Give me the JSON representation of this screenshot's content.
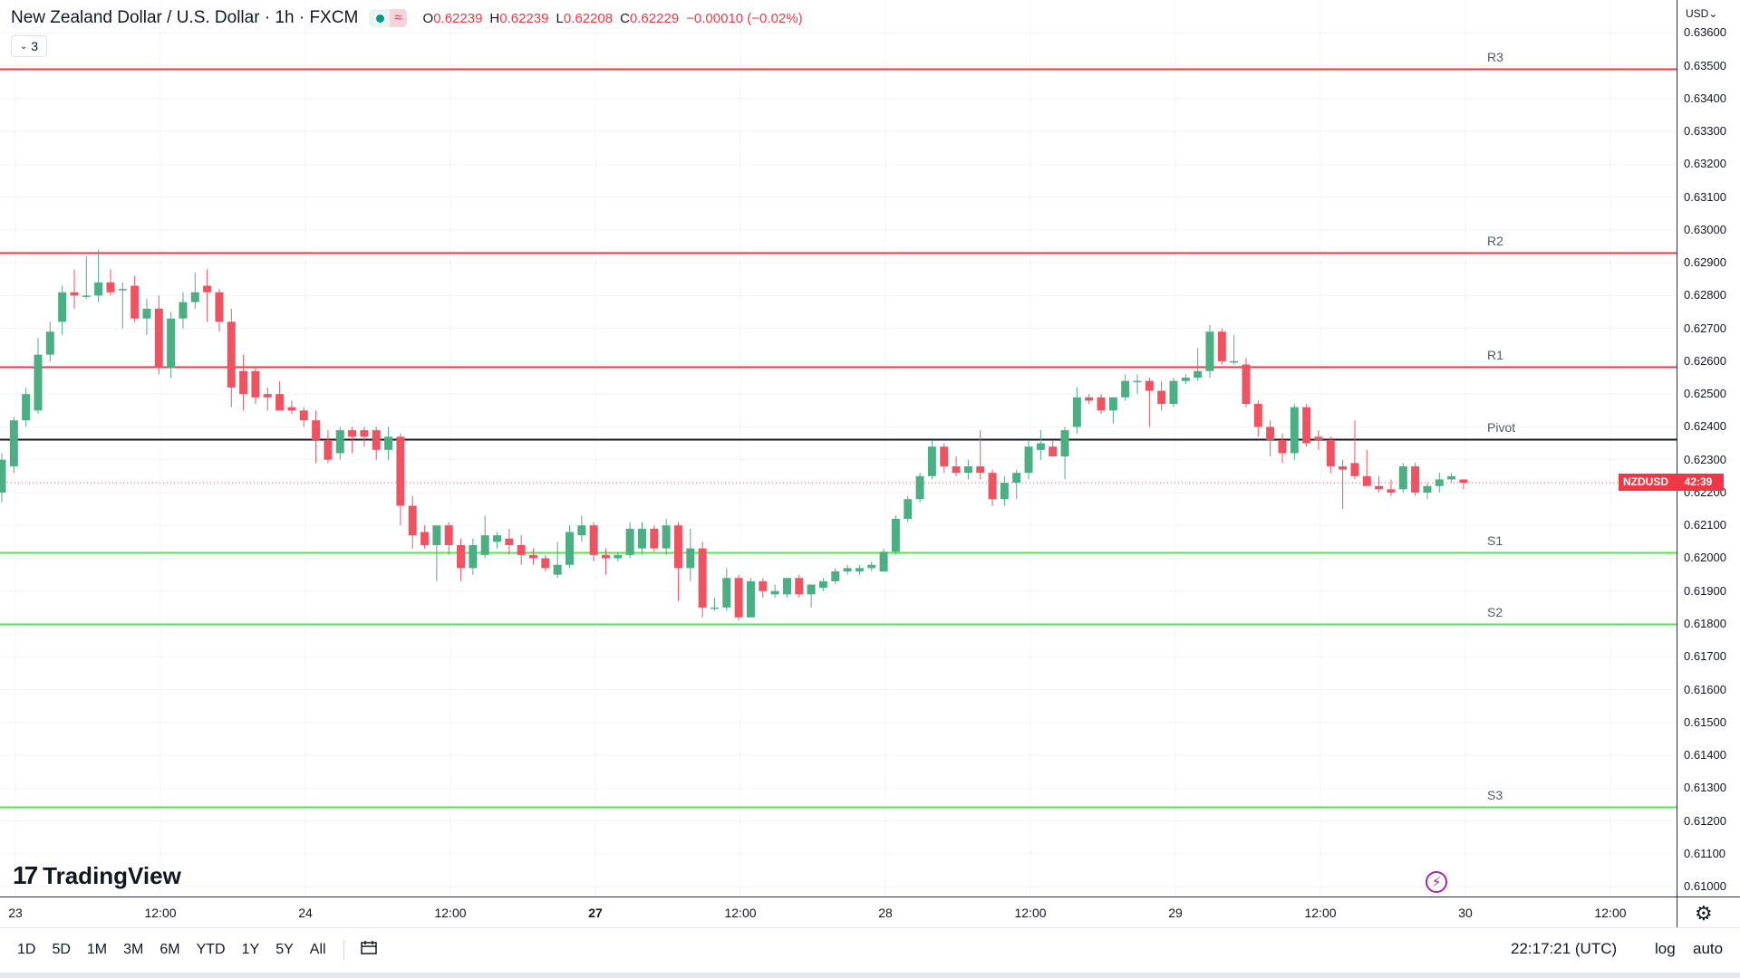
{
  "header": {
    "title": "New Zealand Dollar / U.S. Dollar · 1h · FXCM",
    "ohlc": [
      {
        "label": "O",
        "value": "0.62239"
      },
      {
        "label": "H",
        "value": "0.62239"
      },
      {
        "label": "L",
        "value": "0.62208"
      },
      {
        "label": "C",
        "value": "0.62229"
      }
    ],
    "change": "−0.00010 (−0.02%)",
    "indicator_count": "3",
    "market_status_icon": "dot-icon",
    "wave_icon": "≈"
  },
  "currency": "USD",
  "colors": {
    "up": "#4caf84",
    "down": "#ef5361",
    "resistance": "#f23645",
    "support": "#4ce84c",
    "pivot": "#131722"
  },
  "price_ticks": [
    "0.63600",
    "0.63500",
    "0.63400",
    "0.63300",
    "0.63200",
    "0.63100",
    "0.63000",
    "0.62900",
    "0.62800",
    "0.62700",
    "0.62600",
    "0.62500",
    "0.62400",
    "0.62300",
    "0.62200",
    "0.62100",
    "0.62000",
    "0.61900",
    "0.61800",
    "0.61700",
    "0.61600",
    "0.61500",
    "0.61400",
    "0.61300",
    "0.61200",
    "0.61100",
    "0.61000"
  ],
  "time_ticks": [
    {
      "label": "23",
      "bold": false
    },
    {
      "label": "12:00",
      "bold": false
    },
    {
      "label": "24",
      "bold": false
    },
    {
      "label": "12:00",
      "bold": false
    },
    {
      "label": "27",
      "bold": true
    },
    {
      "label": "12:00",
      "bold": false
    },
    {
      "label": "28",
      "bold": false
    },
    {
      "label": "12:00",
      "bold": false
    },
    {
      "label": "29",
      "bold": false
    },
    {
      "label": "12:00",
      "bold": false
    },
    {
      "label": "30",
      "bold": false
    },
    {
      "label": "12:00",
      "bold": false
    }
  ],
  "last_price_tag": {
    "symbol": "NZDUSD",
    "countdown": "42:39"
  },
  "chart_data": {
    "type": "candlestick",
    "symbol": "NZDUSD",
    "interval": "1h",
    "ylim": [
      0.6097,
      0.637
    ],
    "levels": [
      {
        "name": "R3",
        "price": 0.6349,
        "kind": "resistance"
      },
      {
        "name": "R2",
        "price": 0.62932,
        "kind": "resistance"
      },
      {
        "name": "R1",
        "price": 0.62583,
        "kind": "resistance"
      },
      {
        "name": "Pivot",
        "price": 0.62363,
        "kind": "pivot"
      },
      {
        "name": "S1",
        "price": 0.62018,
        "kind": "support"
      },
      {
        "name": "S2",
        "price": 0.618,
        "kind": "support"
      },
      {
        "name": "S3",
        "price": 0.61242,
        "kind": "support"
      }
    ],
    "candles": [
      {
        "o": 0.622,
        "h": 0.6232,
        "l": 0.6217,
        "c": 0.623
      },
      {
        "o": 0.6228,
        "h": 0.6243,
        "l": 0.6226,
        "c": 0.6242
      },
      {
        "o": 0.6242,
        "h": 0.6252,
        "l": 0.624,
        "c": 0.625
      },
      {
        "o": 0.6245,
        "h": 0.6267,
        "l": 0.6244,
        "c": 0.6262
      },
      {
        "o": 0.6262,
        "h": 0.6272,
        "l": 0.626,
        "c": 0.6269
      },
      {
        "o": 0.6272,
        "h": 0.6283,
        "l": 0.6268,
        "c": 0.6281
      },
      {
        "o": 0.6281,
        "h": 0.6288,
        "l": 0.6276,
        "c": 0.628
      },
      {
        "o": 0.628,
        "h": 0.6292,
        "l": 0.6279,
        "c": 0.628
      },
      {
        "o": 0.628,
        "h": 0.6294,
        "l": 0.6278,
        "c": 0.6284
      },
      {
        "o": 0.6284,
        "h": 0.6288,
        "l": 0.628,
        "c": 0.6281
      },
      {
        "o": 0.6282,
        "h": 0.6284,
        "l": 0.627,
        "c": 0.6282
      },
      {
        "o": 0.6283,
        "h": 0.6286,
        "l": 0.6272,
        "c": 0.6273
      },
      {
        "o": 0.6273,
        "h": 0.6279,
        "l": 0.6268,
        "c": 0.6276
      },
      {
        "o": 0.6276,
        "h": 0.628,
        "l": 0.6256,
        "c": 0.6258
      },
      {
        "o": 0.6258,
        "h": 0.6275,
        "l": 0.6255,
        "c": 0.6273
      },
      {
        "o": 0.6273,
        "h": 0.6281,
        "l": 0.627,
        "c": 0.6278
      },
      {
        "o": 0.6278,
        "h": 0.6287,
        "l": 0.6276,
        "c": 0.6281
      },
      {
        "o": 0.6283,
        "h": 0.6288,
        "l": 0.6272,
        "c": 0.6281
      },
      {
        "o": 0.6281,
        "h": 0.6282,
        "l": 0.6269,
        "c": 0.6272
      },
      {
        "o": 0.6272,
        "h": 0.6276,
        "l": 0.6246,
        "c": 0.6252
      },
      {
        "o": 0.6257,
        "h": 0.6262,
        "l": 0.6245,
        "c": 0.625
      },
      {
        "o": 0.6257,
        "h": 0.6258,
        "l": 0.6247,
        "c": 0.6249
      },
      {
        "o": 0.625,
        "h": 0.6252,
        "l": 0.6245,
        "c": 0.6249
      },
      {
        "o": 0.625,
        "h": 0.6254,
        "l": 0.6245,
        "c": 0.6245
      },
      {
        "o": 0.6246,
        "h": 0.6248,
        "l": 0.6244,
        "c": 0.6245
      },
      {
        "o": 0.6245,
        "h": 0.6246,
        "l": 0.624,
        "c": 0.6242
      },
      {
        "o": 0.6242,
        "h": 0.6245,
        "l": 0.6229,
        "c": 0.6236
      },
      {
        "o": 0.6236,
        "h": 0.6239,
        "l": 0.6229,
        "c": 0.623
      },
      {
        "o": 0.6232,
        "h": 0.624,
        "l": 0.623,
        "c": 0.6239
      },
      {
        "o": 0.6239,
        "h": 0.624,
        "l": 0.6232,
        "c": 0.6237
      },
      {
        "o": 0.6239,
        "h": 0.624,
        "l": 0.6234,
        "c": 0.6237
      },
      {
        "o": 0.6239,
        "h": 0.624,
        "l": 0.623,
        "c": 0.6233
      },
      {
        "o": 0.6233,
        "h": 0.624,
        "l": 0.623,
        "c": 0.6237
      },
      {
        "o": 0.6237,
        "h": 0.6238,
        "l": 0.621,
        "c": 0.6216
      },
      {
        "o": 0.6216,
        "h": 0.6219,
        "l": 0.6203,
        "c": 0.6207
      },
      {
        "o": 0.6208,
        "h": 0.621,
        "l": 0.6203,
        "c": 0.6204
      },
      {
        "o": 0.6204,
        "h": 0.621,
        "l": 0.6193,
        "c": 0.621
      },
      {
        "o": 0.621,
        "h": 0.6211,
        "l": 0.6201,
        "c": 0.6204
      },
      {
        "o": 0.6204,
        "h": 0.6206,
        "l": 0.6193,
        "c": 0.6197
      },
      {
        "o": 0.6197,
        "h": 0.6206,
        "l": 0.6195,
        "c": 0.6204
      },
      {
        "o": 0.6201,
        "h": 0.6213,
        "l": 0.62,
        "c": 0.6207
      },
      {
        "o": 0.6205,
        "h": 0.6208,
        "l": 0.6203,
        "c": 0.6207
      },
      {
        "o": 0.6206,
        "h": 0.6209,
        "l": 0.6201,
        "c": 0.6204
      },
      {
        "o": 0.6204,
        "h": 0.6207,
        "l": 0.6198,
        "c": 0.6201
      },
      {
        "o": 0.6201,
        "h": 0.6203,
        "l": 0.6198,
        "c": 0.62
      },
      {
        "o": 0.62,
        "h": 0.6201,
        "l": 0.6196,
        "c": 0.6197
      },
      {
        "o": 0.6195,
        "h": 0.6205,
        "l": 0.6194,
        "c": 0.6198
      },
      {
        "o": 0.6198,
        "h": 0.621,
        "l": 0.6197,
        "c": 0.6208
      },
      {
        "o": 0.6207,
        "h": 0.6213,
        "l": 0.6205,
        "c": 0.621
      },
      {
        "o": 0.621,
        "h": 0.6211,
        "l": 0.6199,
        "c": 0.6201
      },
      {
        "o": 0.6201,
        "h": 0.6203,
        "l": 0.6195,
        "c": 0.62
      },
      {
        "o": 0.62,
        "h": 0.6202,
        "l": 0.6199,
        "c": 0.6201
      },
      {
        "o": 0.6201,
        "h": 0.6211,
        "l": 0.62,
        "c": 0.6209
      },
      {
        "o": 0.6203,
        "h": 0.6211,
        "l": 0.6201,
        "c": 0.6209
      },
      {
        "o": 0.6209,
        "h": 0.621,
        "l": 0.6202,
        "c": 0.6203
      },
      {
        "o": 0.6203,
        "h": 0.6212,
        "l": 0.6201,
        "c": 0.621
      },
      {
        "o": 0.621,
        "h": 0.6211,
        "l": 0.6187,
        "c": 0.6197
      },
      {
        "o": 0.6197,
        "h": 0.6209,
        "l": 0.6193,
        "c": 0.6203
      },
      {
        "o": 0.6203,
        "h": 0.6205,
        "l": 0.6182,
        "c": 0.6185
      },
      {
        "o": 0.6185,
        "h": 0.6188,
        "l": 0.6184,
        "c": 0.6185
      },
      {
        "o": 0.6185,
        "h": 0.6197,
        "l": 0.6184,
        "c": 0.6194
      },
      {
        "o": 0.6194,
        "h": 0.6195,
        "l": 0.6181,
        "c": 0.6182
      },
      {
        "o": 0.6182,
        "h": 0.6194,
        "l": 0.6182,
        "c": 0.6193
      },
      {
        "o": 0.6193,
        "h": 0.6194,
        "l": 0.6188,
        "c": 0.619
      },
      {
        "o": 0.6189,
        "h": 0.6192,
        "l": 0.6188,
        "c": 0.619
      },
      {
        "o": 0.6189,
        "h": 0.6194,
        "l": 0.6188,
        "c": 0.6194
      },
      {
        "o": 0.6194,
        "h": 0.6195,
        "l": 0.6188,
        "c": 0.6189
      },
      {
        "o": 0.6189,
        "h": 0.6192,
        "l": 0.6185,
        "c": 0.6192
      },
      {
        "o": 0.6191,
        "h": 0.6194,
        "l": 0.619,
        "c": 0.6193
      },
      {
        "o": 0.6193,
        "h": 0.6197,
        "l": 0.6192,
        "c": 0.6196
      },
      {
        "o": 0.6196,
        "h": 0.6198,
        "l": 0.6195,
        "c": 0.6197
      },
      {
        "o": 0.6196,
        "h": 0.6198,
        "l": 0.6195,
        "c": 0.6197
      },
      {
        "o": 0.6197,
        "h": 0.6199,
        "l": 0.6196,
        "c": 0.6198
      },
      {
        "o": 0.6196,
        "h": 0.6203,
        "l": 0.6196,
        "c": 0.6202
      },
      {
        "o": 0.6202,
        "h": 0.6213,
        "l": 0.6201,
        "c": 0.6212
      },
      {
        "o": 0.6212,
        "h": 0.6219,
        "l": 0.6211,
        "c": 0.6218
      },
      {
        "o": 0.6218,
        "h": 0.6226,
        "l": 0.6217,
        "c": 0.6225
      },
      {
        "o": 0.6225,
        "h": 0.6236,
        "l": 0.6224,
        "c": 0.6234
      },
      {
        "o": 0.6234,
        "h": 0.6235,
        "l": 0.6226,
        "c": 0.6228
      },
      {
        "o": 0.6228,
        "h": 0.6231,
        "l": 0.6225,
        "c": 0.6226
      },
      {
        "o": 0.6226,
        "h": 0.623,
        "l": 0.6224,
        "c": 0.6228
      },
      {
        "o": 0.6228,
        "h": 0.6239,
        "l": 0.6224,
        "c": 0.6226
      },
      {
        "o": 0.6226,
        "h": 0.6227,
        "l": 0.6216,
        "c": 0.6218
      },
      {
        "o": 0.6218,
        "h": 0.6225,
        "l": 0.6216,
        "c": 0.6223
      },
      {
        "o": 0.6223,
        "h": 0.6227,
        "l": 0.6218,
        "c": 0.6226
      },
      {
        "o": 0.6226,
        "h": 0.6236,
        "l": 0.6224,
        "c": 0.6234
      },
      {
        "o": 0.6233,
        "h": 0.6239,
        "l": 0.623,
        "c": 0.6235
      },
      {
        "o": 0.6234,
        "h": 0.6236,
        "l": 0.6231,
        "c": 0.6231
      },
      {
        "o": 0.6231,
        "h": 0.624,
        "l": 0.6224,
        "c": 0.6239
      },
      {
        "o": 0.624,
        "h": 0.6252,
        "l": 0.6238,
        "c": 0.6249
      },
      {
        "o": 0.6249,
        "h": 0.625,
        "l": 0.6247,
        "c": 0.6248
      },
      {
        "o": 0.6249,
        "h": 0.625,
        "l": 0.6244,
        "c": 0.6245
      },
      {
        "o": 0.6245,
        "h": 0.6249,
        "l": 0.6241,
        "c": 0.6249
      },
      {
        "o": 0.6249,
        "h": 0.6256,
        "l": 0.6248,
        "c": 0.6254
      },
      {
        "o": 0.6254,
        "h": 0.6256,
        "l": 0.625,
        "c": 0.6254
      },
      {
        "o": 0.6254,
        "h": 0.6255,
        "l": 0.624,
        "c": 0.6251
      },
      {
        "o": 0.6251,
        "h": 0.6254,
        "l": 0.6245,
        "c": 0.6247
      },
      {
        "o": 0.6247,
        "h": 0.6255,
        "l": 0.6246,
        "c": 0.6254
      },
      {
        "o": 0.6254,
        "h": 0.6256,
        "l": 0.6253,
        "c": 0.6255
      },
      {
        "o": 0.6255,
        "h": 0.6264,
        "l": 0.6254,
        "c": 0.6257
      },
      {
        "o": 0.6257,
        "h": 0.6271,
        "l": 0.6255,
        "c": 0.6269
      },
      {
        "o": 0.6269,
        "h": 0.627,
        "l": 0.6259,
        "c": 0.626
      },
      {
        "o": 0.626,
        "h": 0.6268,
        "l": 0.6259,
        "c": 0.626
      },
      {
        "o": 0.6259,
        "h": 0.6261,
        "l": 0.6246,
        "c": 0.6247
      },
      {
        "o": 0.6247,
        "h": 0.6248,
        "l": 0.6237,
        "c": 0.624
      },
      {
        "o": 0.624,
        "h": 0.6242,
        "l": 0.6231,
        "c": 0.6236
      },
      {
        "o": 0.6236,
        "h": 0.6238,
        "l": 0.6229,
        "c": 0.6232
      },
      {
        "o": 0.6232,
        "h": 0.6247,
        "l": 0.623,
        "c": 0.6246
      },
      {
        "o": 0.6246,
        "h": 0.6247,
        "l": 0.6234,
        "c": 0.6235
      },
      {
        "o": 0.6237,
        "h": 0.6239,
        "l": 0.6233,
        "c": 0.6236
      },
      {
        "o": 0.6236,
        "h": 0.6237,
        "l": 0.6226,
        "c": 0.6228
      },
      {
        "o": 0.6228,
        "h": 0.623,
        "l": 0.6215,
        "c": 0.6227
      },
      {
        "o": 0.6229,
        "h": 0.6242,
        "l": 0.6224,
        "c": 0.6225
      },
      {
        "o": 0.6225,
        "h": 0.6233,
        "l": 0.6222,
        "c": 0.6222
      },
      {
        "o": 0.6222,
        "h": 0.6225,
        "l": 0.622,
        "c": 0.6221
      },
      {
        "o": 0.6221,
        "h": 0.6224,
        "l": 0.6219,
        "c": 0.622
      },
      {
        "o": 0.6221,
        "h": 0.6229,
        "l": 0.622,
        "c": 0.6228
      },
      {
        "o": 0.6228,
        "h": 0.6229,
        "l": 0.6219,
        "c": 0.622
      },
      {
        "o": 0.622,
        "h": 0.6223,
        "l": 0.6218,
        "c": 0.6222
      },
      {
        "o": 0.6222,
        "h": 0.6226,
        "l": 0.622,
        "c": 0.6224
      },
      {
        "o": 0.6224,
        "h": 0.6226,
        "l": 0.6223,
        "c": 0.6225
      },
      {
        "o": 0.6224,
        "h": 0.6224,
        "l": 0.6221,
        "c": 0.6223
      }
    ]
  },
  "bottom_bar": {
    "ranges": [
      "1D",
      "5D",
      "1M",
      "3M",
      "6M",
      "YTD",
      "1Y",
      "5Y",
      "All"
    ],
    "date_range_icon": "calendar-range-icon",
    "clock": "22:17:21 (UTC)",
    "log": "log",
    "auto": "auto"
  },
  "logo": {
    "mark": "17",
    "word": "TradingView"
  },
  "flash_icon": "⚡",
  "settings_icon": "⚙"
}
